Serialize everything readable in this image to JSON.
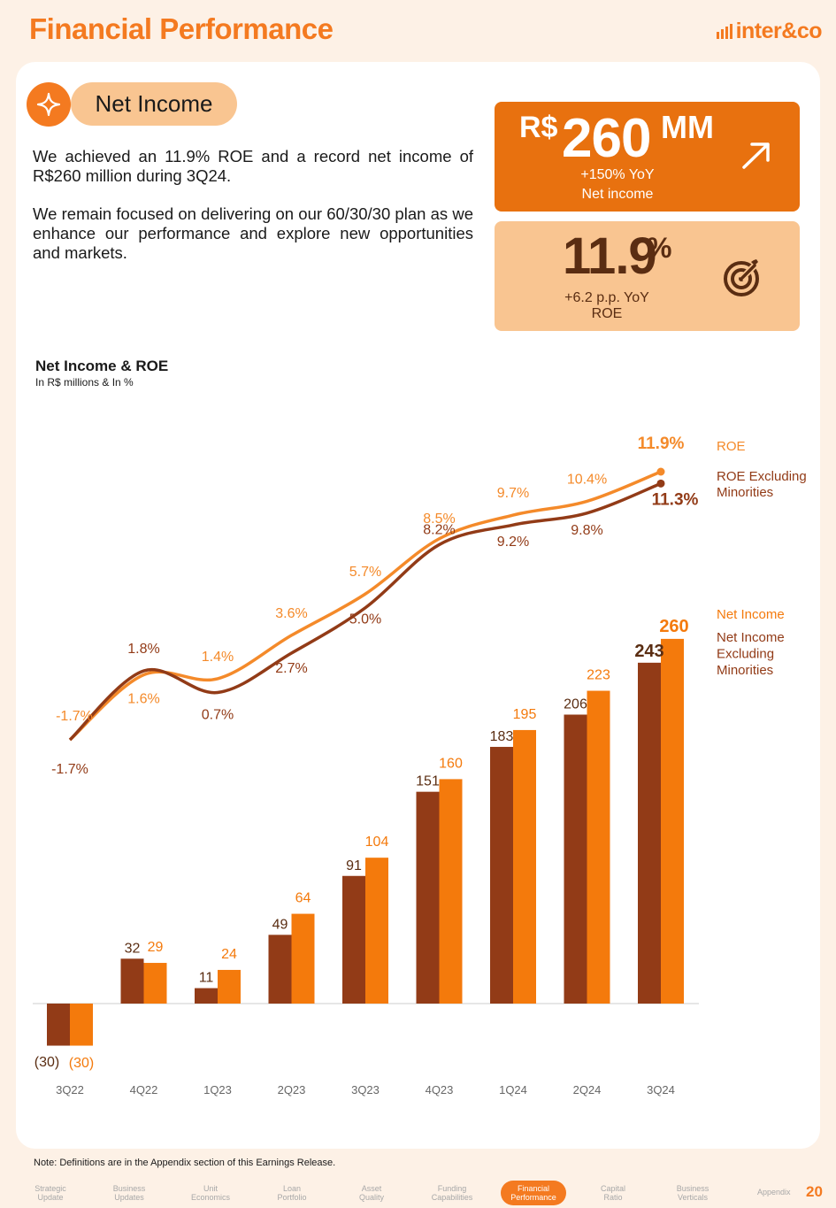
{
  "header": {
    "title": "Financial Performance",
    "logo": "inter&co"
  },
  "section": {
    "pill_label": "Net Income",
    "icon": "sparkle-icon"
  },
  "body": {
    "p1": "We achieved an 11.9% ROE and a record net income of R$260 million during 3Q24.",
    "p2": "We remain focused on delivering on our 60/30/30 plan as we enhance our performance and explore new opportunities and markets."
  },
  "kpi_income": {
    "currency": "R$",
    "value": "260",
    "unit": "MM",
    "change": "+150% YoY",
    "label": "Net income",
    "icon": "arrow-up-right-icon"
  },
  "kpi_roe": {
    "value": "11.9",
    "unit": "%",
    "change": "+6.2 p.p. YoY",
    "label": "ROE",
    "icon": "target-icon"
  },
  "chart_data": {
    "type": "bar",
    "title": "Net Income & ROE",
    "subtitle": "In R$ millions & In %",
    "categories": [
      "3Q22",
      "4Q22",
      "1Q23",
      "2Q23",
      "3Q23",
      "4Q23",
      "1Q24",
      "2Q24",
      "3Q24"
    ],
    "series": [
      {
        "name": "Net Income Excluding Minorities",
        "kind": "bar",
        "color": "#923b17",
        "values": [
          -30,
          32,
          11,
          49,
          91,
          151,
          183,
          206,
          243
        ],
        "labels": [
          "(30)",
          "32",
          "11",
          "49",
          "91",
          "151",
          "183",
          "206",
          "243"
        ]
      },
      {
        "name": "Net Income",
        "kind": "bar",
        "color": "#f47a0c",
        "values": [
          -30,
          29,
          24,
          64,
          104,
          160,
          195,
          223,
          260
        ],
        "labels": [
          "(30)",
          "29",
          "24",
          "64",
          "104",
          "160",
          "195",
          "223",
          "260"
        ]
      },
      {
        "name": "ROE",
        "kind": "line",
        "color": "#f48a2a",
        "values": [
          -1.7,
          1.6,
          1.4,
          3.6,
          5.7,
          8.5,
          9.7,
          10.4,
          11.9
        ],
        "labels": [
          "-1.7%",
          "1.6%",
          "1.4%",
          "3.6%",
          "5.7%",
          "8.5%",
          "9.7%",
          "10.4%",
          "11.9%"
        ]
      },
      {
        "name": "ROE Excluding Minorities",
        "kind": "line",
        "color": "#923b17",
        "values": [
          -1.7,
          1.8,
          0.7,
          2.7,
          5.0,
          8.2,
          9.2,
          9.8,
          11.3
        ],
        "labels": [
          "-1.7%",
          "1.8%",
          "0.7%",
          "2.7%",
          "5.0%",
          "8.2%",
          "9.2%",
          "9.8%",
          "11.3%"
        ]
      }
    ],
    "legend_lines": [
      "ROE",
      "ROE Excluding Minorities"
    ],
    "legend_bars": [
      "Net Income",
      "Net Income Excluding Minorities"
    ],
    "legend_lines_display": [
      [
        "ROE"
      ],
      [
        "ROE Excluding",
        "Minorities"
      ]
    ],
    "legend_bars_display": [
      [
        "Net Income"
      ],
      [
        "Net Income",
        "Excluding",
        "Minorities"
      ]
    ],
    "bar_ylim": [
      -30,
      260
    ],
    "line_ylim": [
      -1.7,
      11.9
    ]
  },
  "note": "Note: Definitions are in the Appendix section of this Earnings Release.",
  "nav": {
    "items": [
      [
        "Strategic",
        "Update"
      ],
      [
        "Business",
        "Updates"
      ],
      [
        "Unit",
        "Economics"
      ],
      [
        "Loan",
        "Portfolio"
      ],
      [
        "Asset",
        "Quality"
      ],
      [
        "Funding",
        "Capabilities"
      ],
      [
        "Financial",
        "Performance"
      ],
      [
        "Capital",
        "Ratio"
      ],
      [
        "Business",
        "Verticals"
      ]
    ],
    "active_index": 6,
    "appendix": "Appendix",
    "page_number": "20"
  }
}
